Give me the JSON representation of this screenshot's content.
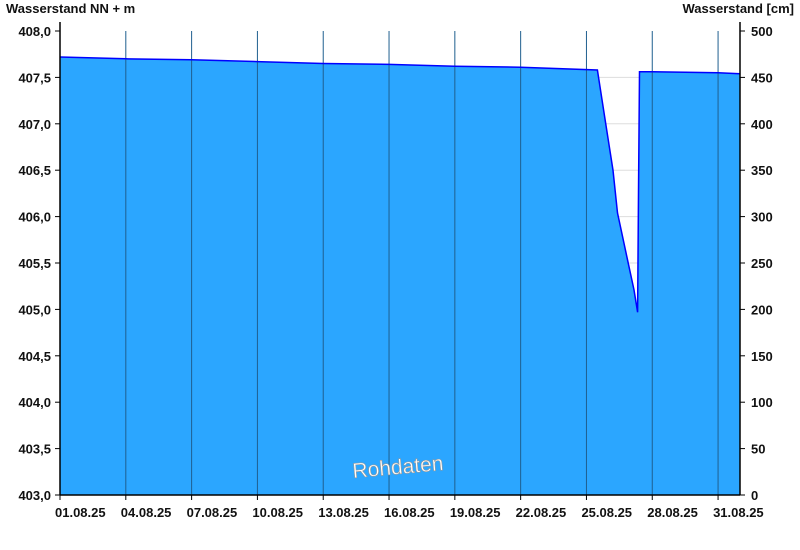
{
  "chart_data": {
    "type": "area",
    "ylabel_left": "Wasserstand NN + m",
    "ylabel_right": "Wasserstand [cm]",
    "ylim_left": [
      403.0,
      408.0
    ],
    "ylim_right": [
      0,
      500
    ],
    "yticks_left": [
      "408,0",
      "407,5",
      "407,0",
      "406,5",
      "406,0",
      "405,5",
      "405,0",
      "404,5",
      "404,0",
      "403,5",
      "403,0"
    ],
    "yticks_right": [
      "500",
      "450",
      "400",
      "350",
      "300",
      "250",
      "200",
      "150",
      "100",
      "50",
      "0"
    ],
    "xlim": [
      "2025-08-01T00:00",
      "2025-09-01T00:00"
    ],
    "xticks": [
      {
        "date": "2025-08-01",
        "label": "01.08.25"
      },
      {
        "date": "2025-08-04",
        "label": "04.08.25"
      },
      {
        "date": "2025-08-07",
        "label": "07.08.25"
      },
      {
        "date": "2025-08-10",
        "label": "10.08.25"
      },
      {
        "date": "2025-08-13",
        "label": "13.08.25"
      },
      {
        "date": "2025-08-16",
        "label": "16.08.25"
      },
      {
        "date": "2025-08-19",
        "label": "19.08.25"
      },
      {
        "date": "2025-08-22",
        "label": "22.08.25"
      },
      {
        "date": "2025-08-25",
        "label": "25.08.25"
      },
      {
        "date": "2025-08-28",
        "label": "28.08.25"
      },
      {
        "date": "2025-08-31",
        "label": "31.08.25"
      }
    ],
    "grid": true,
    "watermark": "Rohdaten",
    "colors": {
      "fill": "#2ba6ff",
      "line": "#0000ff",
      "vgrid": "#1f5f8f",
      "hgrid": "#dddddd"
    },
    "points": [
      [
        "2025-08-01T00:00",
        407.72
      ],
      [
        "2025-08-04T00:00",
        407.7
      ],
      [
        "2025-08-07T00:00",
        407.69
      ],
      [
        "2025-08-10T00:00",
        407.67
      ],
      [
        "2025-08-13T00:00",
        407.65
      ],
      [
        "2025-08-16T00:00",
        407.64
      ],
      [
        "2025-08-19T00:00",
        407.62
      ],
      [
        "2025-08-22T00:00",
        407.61
      ],
      [
        "2025-08-25T12:00",
        407.58
      ],
      [
        "2025-08-25T21:00",
        407.01
      ],
      [
        "2025-08-26T05:00",
        406.5
      ],
      [
        "2025-08-26T10:00",
        406.04
      ],
      [
        "2025-08-26T21:00",
        405.53
      ],
      [
        "2025-08-27T04:00",
        405.21
      ],
      [
        "2025-08-27T08:00",
        404.97
      ],
      [
        "2025-08-27T09:00",
        406.27
      ],
      [
        "2025-08-27T10:00",
        407.56
      ],
      [
        "2025-08-28T00:00",
        407.56
      ],
      [
        "2025-08-31T00:00",
        407.55
      ],
      [
        "2025-09-01T00:00",
        407.54
      ]
    ]
  }
}
